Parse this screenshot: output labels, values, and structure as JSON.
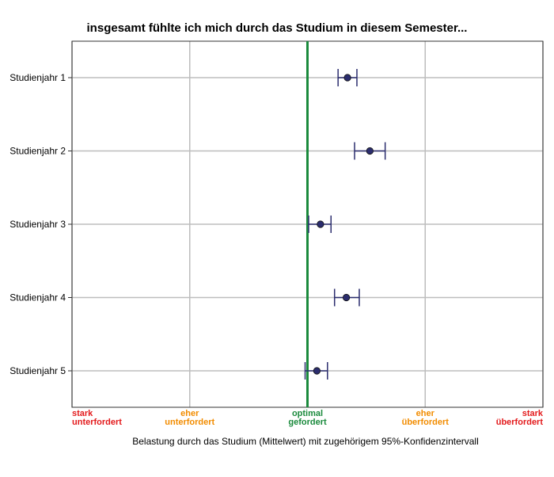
{
  "chart_data": {
    "type": "scatter",
    "title": "insgesamt fühlte ich mich durch das Studium in diesem Semester...",
    "xlabel": "Belastung durch das Studium (Mittelwert) mit zugehörigem 95%-Konfidenzintervall",
    "ylabel": "",
    "xlim": [
      1,
      5
    ],
    "grid": true,
    "reference_line": {
      "x": 3,
      "color": "#1a8a3c"
    },
    "x_ticks": [
      {
        "value": 1,
        "lines": [
          "stark",
          "unterfordert"
        ],
        "color": "#e31a1c"
      },
      {
        "value": 2,
        "lines": [
          "eher",
          "unterfordert"
        ],
        "color": "#f28c00"
      },
      {
        "value": 3,
        "lines": [
          "optimal",
          "gefordert"
        ],
        "color": "#1a8a3c"
      },
      {
        "value": 4,
        "lines": [
          "eher",
          "überfordert"
        ],
        "color": "#f28c00"
      },
      {
        "value": 5,
        "lines": [
          "stark",
          "überfordert"
        ],
        "color": "#e31a1c"
      }
    ],
    "categories": [
      "Studienjahr 1",
      "Studienjahr 2",
      "Studienjahr 3",
      "Studienjahr 4",
      "Studienjahr 5"
    ],
    "points": [
      {
        "category": "Studienjahr 1",
        "mean": 3.34,
        "ci_low": 3.26,
        "ci_high": 3.42
      },
      {
        "category": "Studienjahr 2",
        "mean": 3.53,
        "ci_low": 3.4,
        "ci_high": 3.66
      },
      {
        "category": "Studienjahr 3",
        "mean": 3.11,
        "ci_low": 3.01,
        "ci_high": 3.2
      },
      {
        "category": "Studienjahr 4",
        "mean": 3.33,
        "ci_low": 3.23,
        "ci_high": 3.44
      },
      {
        "category": "Studienjahr 5",
        "mean": 3.08,
        "ci_low": 2.98,
        "ci_high": 3.17
      }
    ],
    "colors": {
      "marker": "#2b2d6e",
      "error_bar": "#2b2d6e",
      "grid": "#bdbdbd"
    }
  }
}
